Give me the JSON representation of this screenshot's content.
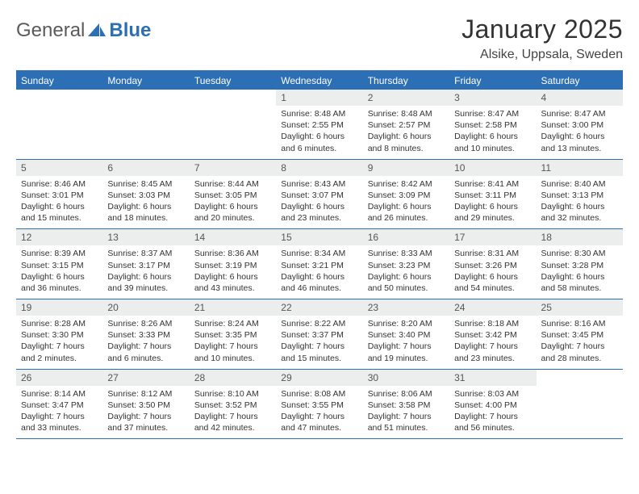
{
  "logo": {
    "text1": "General",
    "text2": "Blue"
  },
  "title": "January 2025",
  "location": "Alsike, Uppsala, Sweden",
  "colors": {
    "header_bar": "#2d6fb5",
    "daynum_bg": "#eceeee",
    "text": "#333333",
    "logo_gray": "#5a5a5a"
  },
  "dayNames": [
    "Sunday",
    "Monday",
    "Tuesday",
    "Wednesday",
    "Thursday",
    "Friday",
    "Saturday"
  ],
  "weeks": [
    [
      {
        "n": "",
        "lines": [
          "",
          "",
          "",
          ""
        ]
      },
      {
        "n": "",
        "lines": [
          "",
          "",
          "",
          ""
        ]
      },
      {
        "n": "",
        "lines": [
          "",
          "",
          "",
          ""
        ]
      },
      {
        "n": "1",
        "lines": [
          "Sunrise: 8:48 AM",
          "Sunset: 2:55 PM",
          "Daylight: 6 hours",
          "and 6 minutes."
        ]
      },
      {
        "n": "2",
        "lines": [
          "Sunrise: 8:48 AM",
          "Sunset: 2:57 PM",
          "Daylight: 6 hours",
          "and 8 minutes."
        ]
      },
      {
        "n": "3",
        "lines": [
          "Sunrise: 8:47 AM",
          "Sunset: 2:58 PM",
          "Daylight: 6 hours",
          "and 10 minutes."
        ]
      },
      {
        "n": "4",
        "lines": [
          "Sunrise: 8:47 AM",
          "Sunset: 3:00 PM",
          "Daylight: 6 hours",
          "and 13 minutes."
        ]
      }
    ],
    [
      {
        "n": "5",
        "lines": [
          "Sunrise: 8:46 AM",
          "Sunset: 3:01 PM",
          "Daylight: 6 hours",
          "and 15 minutes."
        ]
      },
      {
        "n": "6",
        "lines": [
          "Sunrise: 8:45 AM",
          "Sunset: 3:03 PM",
          "Daylight: 6 hours",
          "and 18 minutes."
        ]
      },
      {
        "n": "7",
        "lines": [
          "Sunrise: 8:44 AM",
          "Sunset: 3:05 PM",
          "Daylight: 6 hours",
          "and 20 minutes."
        ]
      },
      {
        "n": "8",
        "lines": [
          "Sunrise: 8:43 AM",
          "Sunset: 3:07 PM",
          "Daylight: 6 hours",
          "and 23 minutes."
        ]
      },
      {
        "n": "9",
        "lines": [
          "Sunrise: 8:42 AM",
          "Sunset: 3:09 PM",
          "Daylight: 6 hours",
          "and 26 minutes."
        ]
      },
      {
        "n": "10",
        "lines": [
          "Sunrise: 8:41 AM",
          "Sunset: 3:11 PM",
          "Daylight: 6 hours",
          "and 29 minutes."
        ]
      },
      {
        "n": "11",
        "lines": [
          "Sunrise: 8:40 AM",
          "Sunset: 3:13 PM",
          "Daylight: 6 hours",
          "and 32 minutes."
        ]
      }
    ],
    [
      {
        "n": "12",
        "lines": [
          "Sunrise: 8:39 AM",
          "Sunset: 3:15 PM",
          "Daylight: 6 hours",
          "and 36 minutes."
        ]
      },
      {
        "n": "13",
        "lines": [
          "Sunrise: 8:37 AM",
          "Sunset: 3:17 PM",
          "Daylight: 6 hours",
          "and 39 minutes."
        ]
      },
      {
        "n": "14",
        "lines": [
          "Sunrise: 8:36 AM",
          "Sunset: 3:19 PM",
          "Daylight: 6 hours",
          "and 43 minutes."
        ]
      },
      {
        "n": "15",
        "lines": [
          "Sunrise: 8:34 AM",
          "Sunset: 3:21 PM",
          "Daylight: 6 hours",
          "and 46 minutes."
        ]
      },
      {
        "n": "16",
        "lines": [
          "Sunrise: 8:33 AM",
          "Sunset: 3:23 PM",
          "Daylight: 6 hours",
          "and 50 minutes."
        ]
      },
      {
        "n": "17",
        "lines": [
          "Sunrise: 8:31 AM",
          "Sunset: 3:26 PM",
          "Daylight: 6 hours",
          "and 54 minutes."
        ]
      },
      {
        "n": "18",
        "lines": [
          "Sunrise: 8:30 AM",
          "Sunset: 3:28 PM",
          "Daylight: 6 hours",
          "and 58 minutes."
        ]
      }
    ],
    [
      {
        "n": "19",
        "lines": [
          "Sunrise: 8:28 AM",
          "Sunset: 3:30 PM",
          "Daylight: 7 hours",
          "and 2 minutes."
        ]
      },
      {
        "n": "20",
        "lines": [
          "Sunrise: 8:26 AM",
          "Sunset: 3:33 PM",
          "Daylight: 7 hours",
          "and 6 minutes."
        ]
      },
      {
        "n": "21",
        "lines": [
          "Sunrise: 8:24 AM",
          "Sunset: 3:35 PM",
          "Daylight: 7 hours",
          "and 10 minutes."
        ]
      },
      {
        "n": "22",
        "lines": [
          "Sunrise: 8:22 AM",
          "Sunset: 3:37 PM",
          "Daylight: 7 hours",
          "and 15 minutes."
        ]
      },
      {
        "n": "23",
        "lines": [
          "Sunrise: 8:20 AM",
          "Sunset: 3:40 PM",
          "Daylight: 7 hours",
          "and 19 minutes."
        ]
      },
      {
        "n": "24",
        "lines": [
          "Sunrise: 8:18 AM",
          "Sunset: 3:42 PM",
          "Daylight: 7 hours",
          "and 23 minutes."
        ]
      },
      {
        "n": "25",
        "lines": [
          "Sunrise: 8:16 AM",
          "Sunset: 3:45 PM",
          "Daylight: 7 hours",
          "and 28 minutes."
        ]
      }
    ],
    [
      {
        "n": "26",
        "lines": [
          "Sunrise: 8:14 AM",
          "Sunset: 3:47 PM",
          "Daylight: 7 hours",
          "and 33 minutes."
        ]
      },
      {
        "n": "27",
        "lines": [
          "Sunrise: 8:12 AM",
          "Sunset: 3:50 PM",
          "Daylight: 7 hours",
          "and 37 minutes."
        ]
      },
      {
        "n": "28",
        "lines": [
          "Sunrise: 8:10 AM",
          "Sunset: 3:52 PM",
          "Daylight: 7 hours",
          "and 42 minutes."
        ]
      },
      {
        "n": "29",
        "lines": [
          "Sunrise: 8:08 AM",
          "Sunset: 3:55 PM",
          "Daylight: 7 hours",
          "and 47 minutes."
        ]
      },
      {
        "n": "30",
        "lines": [
          "Sunrise: 8:06 AM",
          "Sunset: 3:58 PM",
          "Daylight: 7 hours",
          "and 51 minutes."
        ]
      },
      {
        "n": "31",
        "lines": [
          "Sunrise: 8:03 AM",
          "Sunset: 4:00 PM",
          "Daylight: 7 hours",
          "and 56 minutes."
        ]
      },
      {
        "n": "",
        "lines": [
          "",
          "",
          "",
          ""
        ]
      }
    ]
  ]
}
